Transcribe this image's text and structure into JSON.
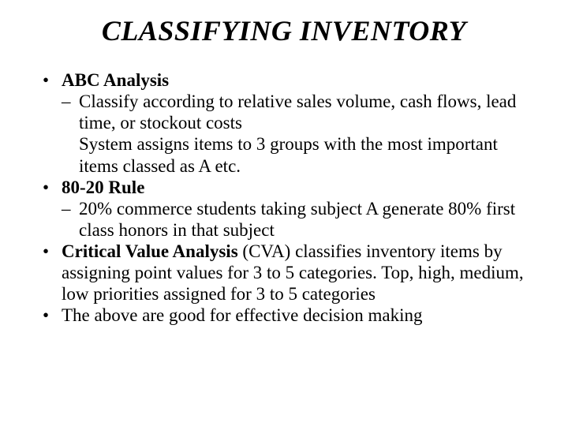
{
  "title": "CLASSIFYING INVENTORY",
  "items": {
    "b1_label": "ABC Analysis",
    "b1_sub1": "Classify according to relative sales volume, cash flows, lead time, or stockout costs",
    "b1_sub2": "System assigns items to 3 groups with the most important items classed as A etc.",
    "b2_label": "80-20 Rule",
    "b2_sub1": "20% commerce students taking subject A generate 80% first class honors in that subject",
    "b3_label": "Critical Value Analysis",
    "b3_rest": " (CVA) classifies inventory items by assigning point values for 3 to 5 categories. Top, high, medium, low priorities assigned for 3 to 5 categories",
    "b4": "The above are good for effective decision making"
  },
  "style": {
    "title_fontsize": 36,
    "body_fontsize": 23,
    "font_family": "Times New Roman",
    "title_italic": true,
    "title_bold": true,
    "background_color": "#ffffff",
    "text_color": "#000000",
    "bullet_char": "•",
    "dash_char": "–"
  }
}
